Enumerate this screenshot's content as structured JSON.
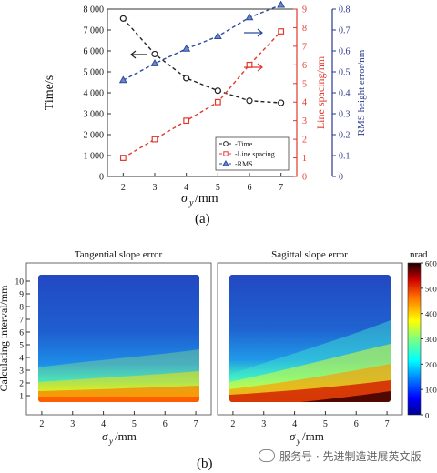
{
  "chart_data": [
    {
      "type": "line",
      "panel_label": "(a)",
      "x": [
        2,
        3,
        4,
        5,
        6,
        7
      ],
      "xlabel": "σ",
      "xlabel_sub": "y",
      "xlabel_unit": "/mm",
      "xlim": [
        1.5,
        7.5
      ],
      "x_ticks": [
        "2",
        "3",
        "4",
        "5",
        "6",
        "7"
      ],
      "y_left": {
        "label": "Time/s",
        "ylim": [
          0,
          8000
        ],
        "ticks": [
          "0",
          "1 000",
          "2 000",
          "3 000",
          "4 000",
          "5 000",
          "6 000",
          "7 000",
          "8 000"
        ]
      },
      "y_right1": {
        "label": "Line spacing/nm",
        "ylim": [
          0,
          9
        ],
        "color": "#e03a2f",
        "ticks": [
          "0",
          "1",
          "2",
          "3",
          "4",
          "5",
          "6",
          "7",
          "8",
          "9"
        ]
      },
      "y_right2": {
        "label": "RMS height error/nm",
        "ylim": [
          0,
          0.8
        ],
        "color": "#2b3a8c",
        "ticks": [
          "0",
          "0.1",
          "0.2",
          "0.3",
          "0.4",
          "0.5",
          "0.6",
          "0.7",
          "0.8"
        ]
      },
      "series": [
        {
          "name": "Time",
          "axis": "left",
          "color": "#222222",
          "marker": "circle",
          "values": [
            7550,
            5850,
            4700,
            4100,
            3620,
            3520
          ]
        },
        {
          "name": "Line spacing",
          "axis": "right1",
          "color": "#e03a2f",
          "marker": "square",
          "values": [
            1,
            2,
            3,
            4,
            6,
            7.8
          ]
        },
        {
          "name": "RMS",
          "axis": "right2",
          "color": "#2b4aa0",
          "marker": "triangle",
          "values": [
            0.46,
            0.54,
            0.61,
            0.67,
            0.76,
            0.82
          ]
        }
      ],
      "legend_entries": [
        "-Time",
        "-Line spacing",
        "-RMS"
      ],
      "legend_position": "bottom-right",
      "grid": false
    },
    {
      "type": "heatmap",
      "panel_label": "(b)",
      "ylabel": "Calculating interval/mm",
      "y_ticks": [
        "1",
        "2",
        "3",
        "4",
        "5",
        "6",
        "7",
        "8",
        "9",
        "10"
      ],
      "ylim": [
        0.5,
        10.5
      ],
      "x_ticks": [
        "2",
        "3",
        "4",
        "5",
        "6",
        "7"
      ],
      "xlim": [
        1.5,
        7.5
      ],
      "xlabel": "σ",
      "xlabel_sub": "y",
      "xlabel_unit": "/mm",
      "colorbar": {
        "label": "nrad",
        "range": [
          0,
          600
        ],
        "ticks": [
          "0",
          "100",
          "200",
          "300",
          "400",
          "500",
          "600"
        ]
      },
      "panels": [
        {
          "title": "Tangential slope error"
        },
        {
          "title": "Sagittal slope error"
        }
      ]
    }
  ],
  "watermark": "服务号 · 先进制造进展英文版"
}
